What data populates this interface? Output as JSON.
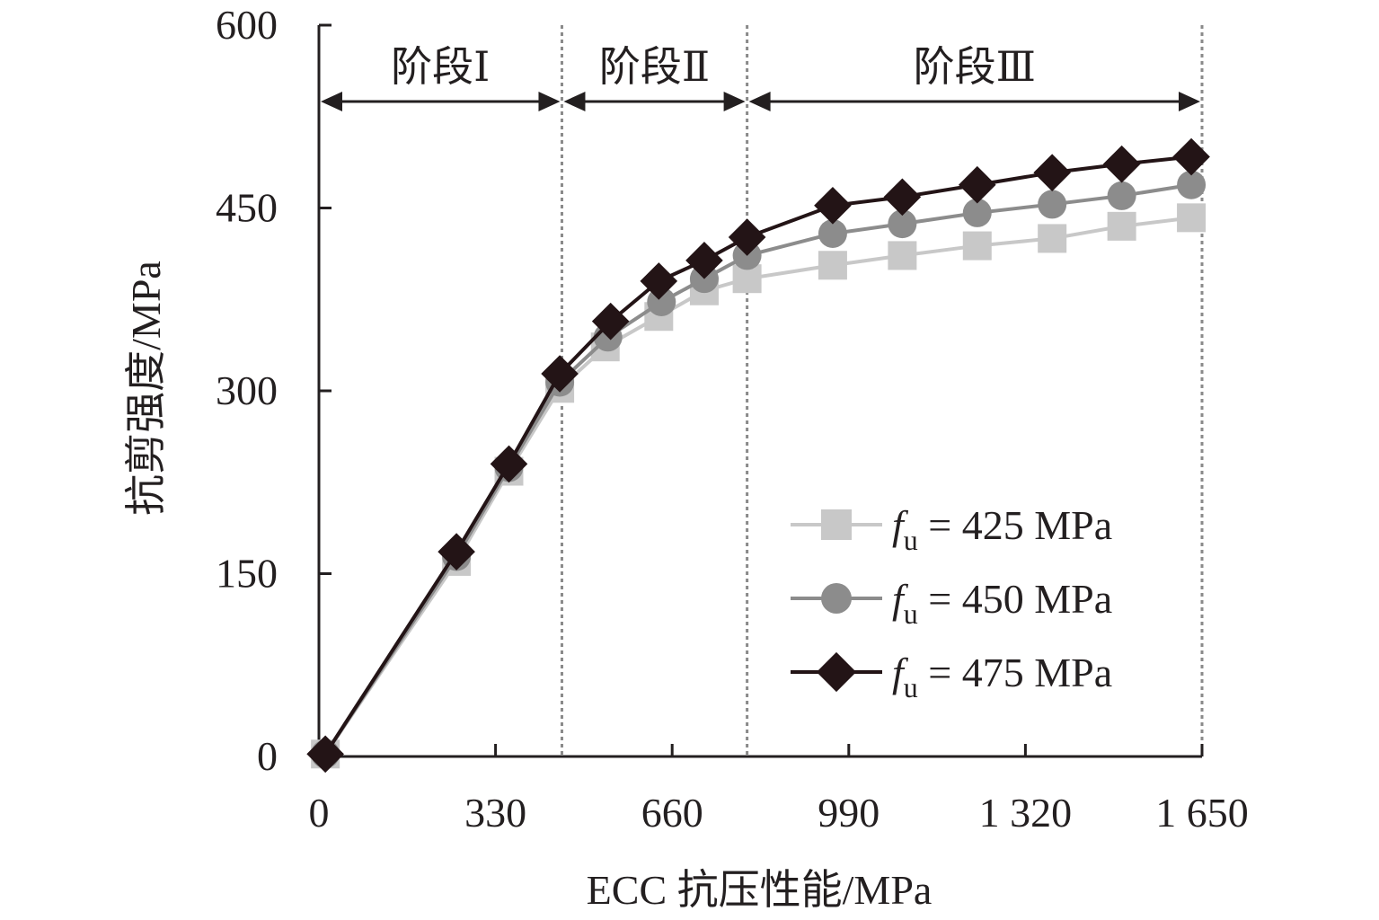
{
  "chart_data": {
    "type": "line",
    "xlabel": "ECC 抗压性能/MPa",
    "ylabel": "抗剪强度/MPa",
    "xlim": [
      0,
      1650
    ],
    "ylim": [
      0,
      600
    ],
    "x_ticks": [
      0,
      330,
      660,
      990,
      1320,
      1650
    ],
    "x_tick_labels": [
      "0",
      "330",
      "660",
      "990",
      "1 320",
      "1 650"
    ],
    "y_ticks": [
      0,
      150,
      300,
      450,
      600
    ],
    "y_tick_labels": [
      "0",
      "150",
      "300",
      "450",
      "600"
    ],
    "stage_boundaries": [
      454,
      800,
      1650
    ],
    "stages": [
      {
        "label": "阶段Ⅰ",
        "from": 0,
        "to": 454
      },
      {
        "label": "阶段Ⅱ",
        "from": 454,
        "to": 800
      },
      {
        "label": "阶段Ⅲ",
        "from": 800,
        "to": 1650
      }
    ],
    "legend_position": "lower-right",
    "series": [
      {
        "name": "f_u = 425 MPa",
        "legend": {
          "symbol": "f",
          "sub": "u",
          "rest": " = 425 MPa"
        },
        "marker": "square",
        "color": "#c8c8c8",
        "points": [
          [
            12,
            2
          ],
          [
            257,
            160
          ],
          [
            355,
            234
          ],
          [
            450,
            302
          ],
          [
            535,
            336
          ],
          [
            635,
            361
          ],
          [
            720,
            382
          ],
          [
            800,
            392
          ],
          [
            960,
            403
          ],
          [
            1090,
            411
          ],
          [
            1230,
            419
          ],
          [
            1370,
            425
          ],
          [
            1500,
            435
          ],
          [
            1630,
            442
          ]
        ]
      },
      {
        "name": "f_u = 450 MPa",
        "legend": {
          "symbol": "f",
          "sub": "u",
          "rest": " = 450 MPa"
        },
        "marker": "circle",
        "color": "#8c8c8c",
        "points": [
          [
            12,
            2
          ],
          [
            257,
            164
          ],
          [
            355,
            237
          ],
          [
            450,
            307
          ],
          [
            540,
            344
          ],
          [
            640,
            373
          ],
          [
            720,
            392
          ],
          [
            800,
            411
          ],
          [
            960,
            429
          ],
          [
            1090,
            437
          ],
          [
            1230,
            446
          ],
          [
            1370,
            453
          ],
          [
            1500,
            460
          ],
          [
            1630,
            469
          ]
        ]
      },
      {
        "name": "f_u = 475 MPa",
        "legend": {
          "symbol": "f",
          "sub": "u",
          "rest": " = 475 MPa"
        },
        "marker": "diamond",
        "color": "#231416",
        "points": [
          [
            12,
            2
          ],
          [
            257,
            168
          ],
          [
            355,
            240
          ],
          [
            450,
            314
          ],
          [
            545,
            357
          ],
          [
            635,
            390
          ],
          [
            720,
            407
          ],
          [
            800,
            426
          ],
          [
            960,
            452
          ],
          [
            1090,
            459
          ],
          [
            1230,
            469
          ],
          [
            1370,
            479
          ],
          [
            1500,
            486
          ],
          [
            1630,
            492
          ]
        ]
      }
    ]
  }
}
